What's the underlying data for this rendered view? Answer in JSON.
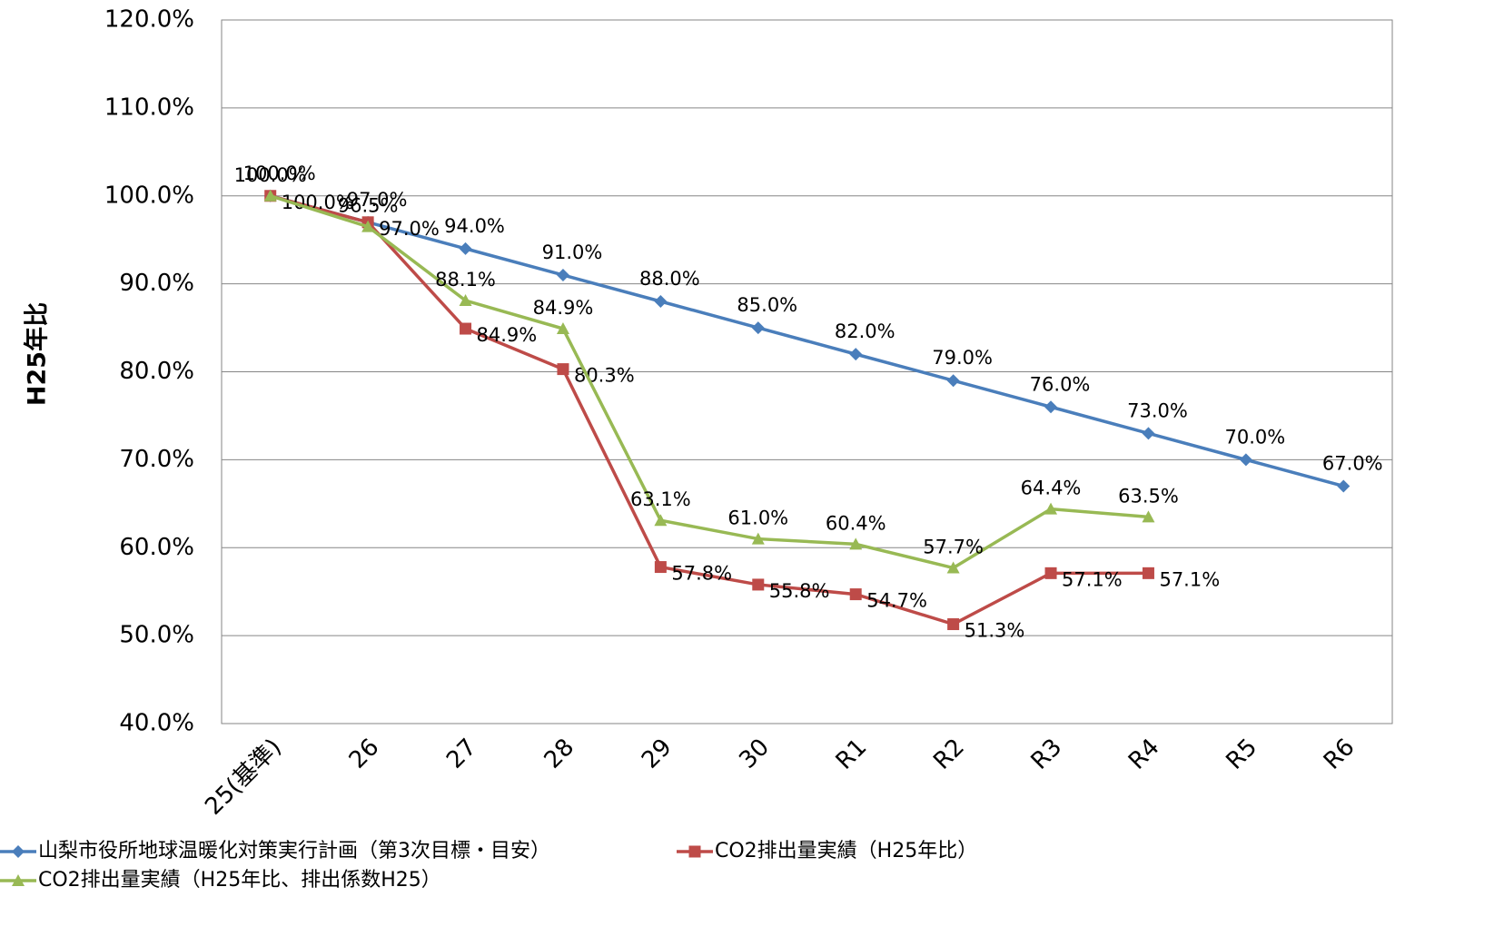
{
  "chart_data": {
    "type": "line",
    "y_label": "H25年比",
    "categories": [
      "25(基準)",
      "26",
      "27",
      "28",
      "29",
      "30",
      "R1",
      "R2",
      "R3",
      "R4",
      "R5",
      "R6"
    ],
    "series": [
      {
        "name": "山梨市役所地球温暖化対策実行計画（第3次目標・目安）",
        "color": "#4a7ebb",
        "marker": "diamond",
        "values": [
          100,
          97,
          94,
          91,
          88,
          85,
          82,
          79,
          76,
          73,
          70,
          67
        ],
        "value_labels": [
          "100.0%",
          "97.0%",
          "94.0%",
          "91.0%",
          "88.0%",
          "85.0%",
          "82.0%",
          "79.0%",
          "76.0%",
          "73.0%",
          "70.0%",
          "67.0%"
        ]
      },
      {
        "name": "CO2排出量実績（H25年比）",
        "color": "#be4b48",
        "marker": "square",
        "values": [
          100,
          97,
          84.9,
          80.3,
          57.8,
          55.8,
          54.7,
          51.3,
          57.1,
          57.1,
          null,
          null
        ],
        "value_labels": [
          "100.0%",
          "97.0%",
          "84.9%",
          "80.3%",
          "57.8%",
          "55.8%",
          "54.7%",
          "51.3%",
          "57.1%",
          "57.1%",
          null,
          null
        ]
      },
      {
        "name": "CO2排出量実績（H25年比、排出係数H25）",
        "color": "#98b954",
        "marker": "triangle",
        "values": [
          100,
          96.5,
          88.1,
          84.9,
          63.1,
          61.0,
          60.4,
          57.7,
          64.4,
          63.5,
          null,
          null
        ],
        "value_labels": [
          "100.0%",
          "96.5%",
          "88.1%",
          "84.9%",
          "63.1%",
          "61.0%",
          "60.4%",
          "57.7%",
          "64.4%",
          "63.5%",
          null,
          null
        ]
      }
    ],
    "ylim": [
      40,
      120
    ],
    "yticks": [
      {
        "value": 40,
        "label": "40.0%"
      },
      {
        "value": 50,
        "label": "50.0%"
      },
      {
        "value": 60,
        "label": "60.0%"
      },
      {
        "value": 70,
        "label": "70.0%"
      },
      {
        "value": 80,
        "label": "80.0%"
      },
      {
        "value": 90,
        "label": "90.0%"
      },
      {
        "value": 100,
        "label": "100.0%"
      },
      {
        "value": 110,
        "label": "110.0%"
      },
      {
        "value": 120,
        "label": "120.0%"
      }
    ],
    "grid": true
  }
}
